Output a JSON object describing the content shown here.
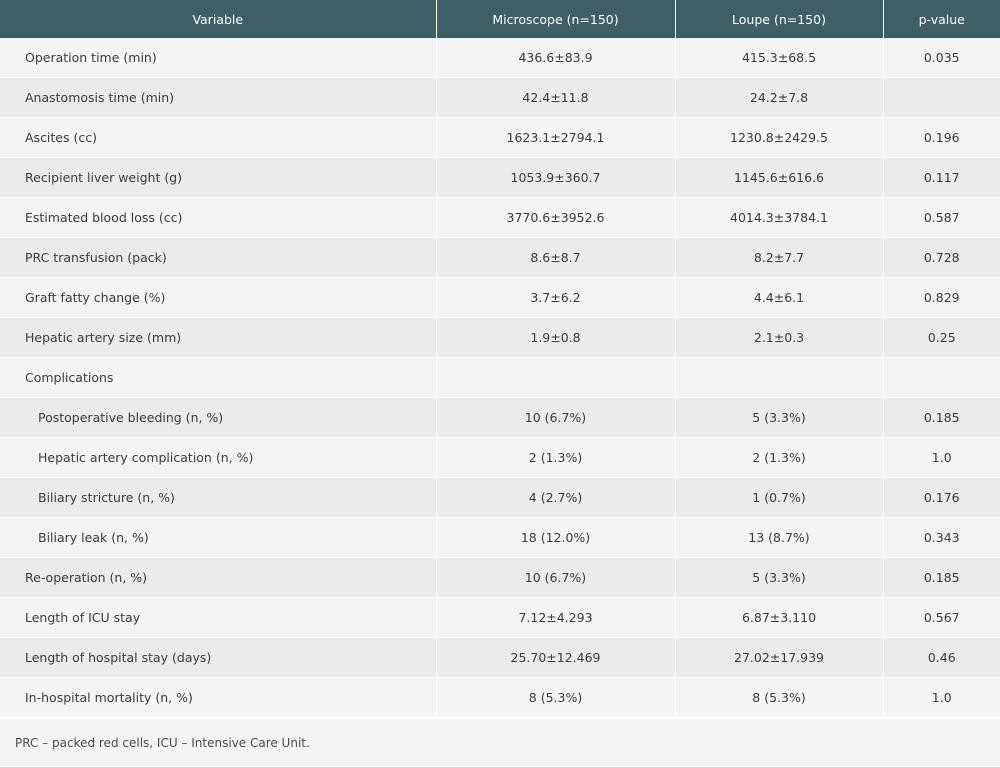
{
  "table": {
    "headers": [
      "Variable",
      "Microscope (n=150)",
      "Loupe (n=150)",
      "p-value"
    ],
    "rows": [
      {
        "label": "Operation time (min)",
        "microscope": "436.6±83.9",
        "loupe": "415.3±68.5",
        "p": "0.035",
        "indent": false
      },
      {
        "label": "Anastomosis time (min)",
        "microscope": "42.4±11.8",
        "loupe": "24.2±7.8",
        "p": "",
        "indent": false
      },
      {
        "label": "Ascites (cc)",
        "microscope": "1623.1±2794.1",
        "loupe": "1230.8±2429.5",
        "p": "0.196",
        "indent": false
      },
      {
        "label": "Recipient liver weight (g)",
        "microscope": "1053.9±360.7",
        "loupe": "1145.6±616.6",
        "p": "0.117",
        "indent": false
      },
      {
        "label": "Estimated blood loss (cc)",
        "microscope": "3770.6±3952.6",
        "loupe": "4014.3±3784.1",
        "p": "0.587",
        "indent": false
      },
      {
        "label": "PRC transfusion (pack)",
        "microscope": "8.6±8.7",
        "loupe": "8.2±7.7",
        "p": "0.728",
        "indent": false
      },
      {
        "label": "Graft fatty change (%)",
        "microscope": "3.7±6.2",
        "loupe": "4.4±6.1",
        "p": "0.829",
        "indent": false
      },
      {
        "label": "Hepatic artery size (mm)",
        "microscope": "1.9±0.8",
        "loupe": "2.1±0.3",
        "p": "0.25",
        "indent": false
      },
      {
        "label": "Complications",
        "microscope": "",
        "loupe": "",
        "p": "",
        "indent": false
      },
      {
        "label": "Postoperative bleeding (n, %)",
        "microscope": "10 (6.7%)",
        "loupe": "5 (3.3%)",
        "p": "0.185",
        "indent": true
      },
      {
        "label": "Hepatic artery complication (n, %)",
        "microscope": "2 (1.3%)",
        "loupe": "2 (1.3%)",
        "p": "1.0",
        "indent": true
      },
      {
        "label": "Biliary stricture (n, %)",
        "microscope": "4 (2.7%)",
        "loupe": "1 (0.7%)",
        "p": "0.176",
        "indent": true
      },
      {
        "label": "Biliary leak (n, %)",
        "microscope": "18 (12.0%)",
        "loupe": "13 (8.7%)",
        "p": "0.343",
        "indent": true
      },
      {
        "label": "Re-operation (n, %)",
        "microscope": "10 (6.7%)",
        "loupe": "5 (3.3%)",
        "p": "0.185",
        "indent": false
      },
      {
        "label": "Length of ICU stay",
        "microscope": "7.12±4.293",
        "loupe": "6.87±3.110",
        "p": "0.567",
        "indent": false
      },
      {
        "label": "Length of hospital stay (days)",
        "microscope": "25.70±12.469",
        "loupe": "27.02±17.939",
        "p": "0.46",
        "indent": false
      },
      {
        "label": "In-hospital mortality (n, %)",
        "microscope": "8 (5.3%)",
        "loupe": "8 (5.3%)",
        "p": "1.0",
        "indent": false
      }
    ],
    "footnote": "PRC – packed red cells, ICU – Intensive Care Unit."
  },
  "colors": {
    "header_bg": "#3f5f67",
    "row_light": "#f4f4f4",
    "row_dark": "#ebebeb"
  }
}
